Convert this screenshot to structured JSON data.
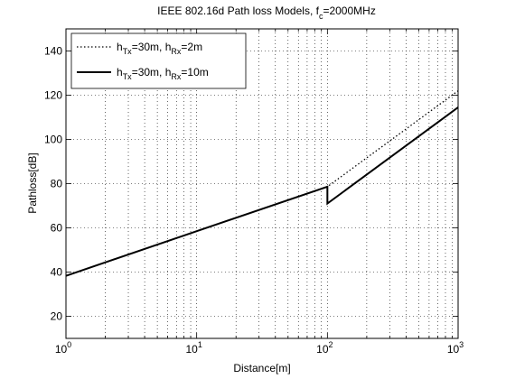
{
  "chart_data": {
    "type": "line",
    "title": {
      "main": "IEEE 802.16d Path loss Models, f",
      "sub": "c",
      "suffix": "=2000MHz"
    },
    "xlabel": "Distance[m]",
    "ylabel": "Pathloss[dB]",
    "xscale": "log",
    "xlim": [
      1,
      1000
    ],
    "ylim": [
      10,
      150
    ],
    "x_ticks": [
      {
        "value": 1,
        "base": "10",
        "exp": "0"
      },
      {
        "value": 10,
        "base": "10",
        "exp": "1"
      },
      {
        "value": 100,
        "base": "10",
        "exp": "2"
      },
      {
        "value": 1000,
        "base": "10",
        "exp": "3"
      }
    ],
    "y_ticks": [
      "20",
      "40",
      "60",
      "80",
      "100",
      "120",
      "140"
    ],
    "grid": true,
    "legend_position": "top-left",
    "series": [
      {
        "legend": [
          {
            "t": "h",
            "sub": ""
          },
          {
            "t": "",
            "sub": "Tx"
          },
          {
            "t": "=30m, h",
            "sub": ""
          },
          {
            "t": "",
            "sub": "Rx"
          },
          {
            "t": "=2m",
            "sub": ""
          }
        ],
        "style": "dotted",
        "color": "#000000",
        "x": [
          1,
          10,
          100,
          100,
          1000
        ],
        "y": [
          38.3,
          58.5,
          78.6,
          78.6,
          122.0
        ]
      },
      {
        "legend": [
          {
            "t": "h",
            "sub": ""
          },
          {
            "t": "",
            "sub": "Tx"
          },
          {
            "t": "=30m, h",
            "sub": ""
          },
          {
            "t": "",
            "sub": "Rx"
          },
          {
            "t": "=10m",
            "sub": ""
          }
        ],
        "style": "solid",
        "color": "#000000",
        "x": [
          1,
          10,
          100,
          100,
          1000
        ],
        "y": [
          38.3,
          58.5,
          78.6,
          71.0,
          114.5
        ]
      }
    ]
  }
}
